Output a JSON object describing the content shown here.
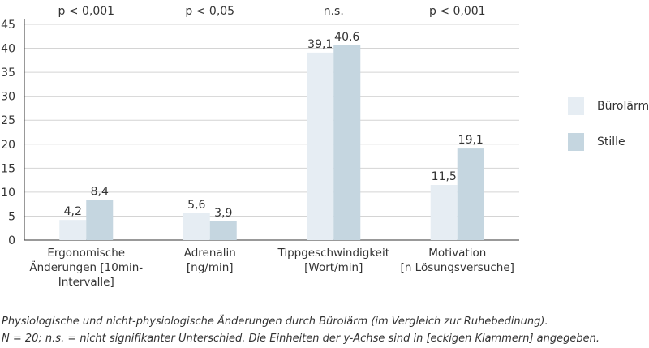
{
  "chart_data": {
    "type": "bar",
    "categories": [
      [
        "Ergonomische",
        "Änderungen [10min-",
        "Intervalle]"
      ],
      [
        "Adrenalin",
        "[ng/min]"
      ],
      [
        "Tippgeschwindigkeit",
        "[Wort/min]"
      ],
      [
        "Motivation",
        "[n Lösungsversuche]"
      ]
    ],
    "series": [
      {
        "name": "Bürolärm",
        "values": [
          4.2,
          5.6,
          39.1,
          11.5
        ],
        "labels": [
          "4,2",
          "5,6",
          "39,1",
          "11,5"
        ],
        "color": "#e6edf3"
      },
      {
        "name": "Stille",
        "values": [
          8.4,
          3.9,
          40.6,
          19.1
        ],
        "labels": [
          "8,4",
          "3,9",
          "40.6",
          "19,1"
        ],
        "color": "#c5d6e0"
      }
    ],
    "significance": [
      "p < 0,001",
      "p < 0,05",
      "n.s.",
      "p < 0,001"
    ],
    "yticks": [
      0,
      5,
      10,
      15,
      20,
      25,
      30,
      35,
      40,
      45
    ],
    "ylim": [
      0,
      45
    ],
    "grid": true,
    "legend_position": "right"
  },
  "caption": {
    "line1": "Physiologische und nicht-physiologische Änderungen durch Bürolärm (im Vergleich zur Ruhebedinung).",
    "line2": "N = 20; n.s. = nicht signifikanter Unterschied. Die Einheiten der y-Achse sind in [eckigen Klammern] angegeben."
  }
}
